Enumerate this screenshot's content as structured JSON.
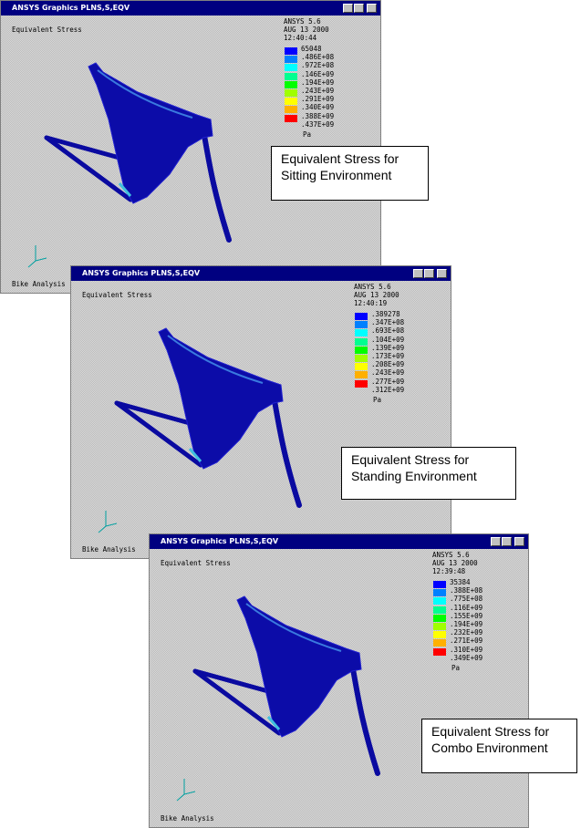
{
  "windows": [
    {
      "title": "ANSYS Graphics   PLNS,S,EQV",
      "plot_title": "Equivalent Stress",
      "info": [
        "ANSYS 5.6",
        "AUG 13 2000",
        "12:40:44"
      ],
      "legend": [
        "65048",
        ".486E+08",
        ".972E+08",
        ".146E+09",
        ".194E+09",
        ".243E+09",
        ".291E+09",
        ".340E+09",
        ".388E+09",
        ".437E+09"
      ],
      "unit": "Pa",
      "footer": "Bike Analysis",
      "caption": [
        "Equivalent Stress for",
        "Sitting Environment"
      ]
    },
    {
      "title": "ANSYS Graphics   PLNS,S,EQV",
      "plot_title": "Equivalent Stress",
      "info": [
        "ANSYS 5.6",
        "AUG 13 2000",
        "12:40:19"
      ],
      "legend": [
        ".389278",
        ".347E+08",
        ".693E+08",
        ".104E+09",
        ".139E+09",
        ".173E+09",
        ".208E+09",
        ".243E+09",
        ".277E+09",
        ".312E+09"
      ],
      "unit": "Pa",
      "footer": "Bike Analysis",
      "caption": [
        "Equivalent Stress for",
        "Standing Environment"
      ]
    },
    {
      "title": "ANSYS Graphics   PLNS,S,EQV",
      "plot_title": "Equivalent Stress",
      "info": [
        "ANSYS 5.6",
        "AUG 13 2000",
        "12:39:48"
      ],
      "legend": [
        "35384",
        ".388E+08",
        ".775E+08",
        ".116E+09",
        ".155E+09",
        ".194E+09",
        ".232E+09",
        ".271E+09",
        ".310E+09",
        ".349E+09"
      ],
      "unit": "Pa",
      "footer": "Bike Analysis",
      "caption": [
        "Equivalent Stress for",
        "Combo Environment"
      ]
    }
  ]
}
